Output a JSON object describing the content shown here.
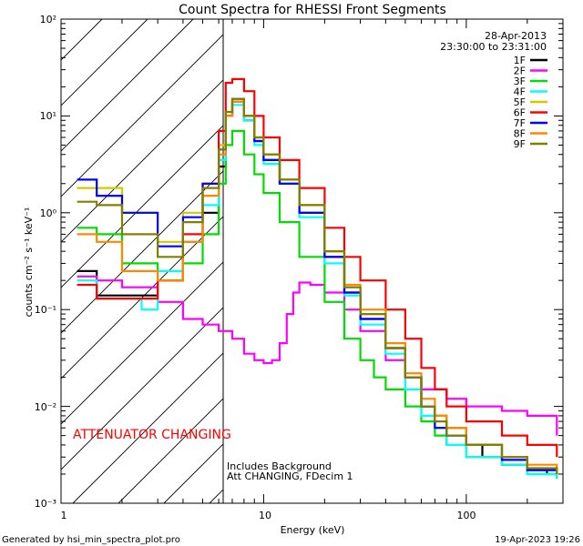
{
  "footer": {
    "left": "Generated by hsi_min_spectra_plot.pro",
    "right": "19-Apr-2023 19:26"
  },
  "chart_data": {
    "type": "line",
    "title": "Count Spectra for RHESSI Front Segments",
    "xlabel": "Energy (keV)",
    "ylabel": "counts cm⁻² s⁻¹ keV⁻¹",
    "xscale": "log",
    "yscale": "log",
    "xlim": [
      1,
      300
    ],
    "ylim": [
      0.001,
      100
    ],
    "x_tick_labels": [
      "1",
      "10",
      "100"
    ],
    "y_tick_labels": [
      "10⁻³",
      "10⁻²",
      "10⁻¹",
      "10⁰",
      "10¹",
      "10²"
    ],
    "date": "28-Apr-2013",
    "time_range": "23:30:00 to 23:31:00",
    "attenuator_text": "ATTENUATOR CHANGING",
    "attenuator_region_max_keV": 6,
    "notes": [
      "Includes Background",
      "Att CHANGING, FDecim 1"
    ],
    "legend_position": "top-right",
    "series": [
      {
        "name": "1F",
        "color": "#000000",
        "x": [
          1.2,
          1.5,
          2,
          3,
          4,
          5,
          6,
          6.5,
          7,
          8,
          9,
          10,
          12,
          15,
          20,
          25,
          30,
          40,
          50,
          60,
          70,
          80,
          100,
          120,
          150,
          200,
          250,
          280
        ],
        "y": [
          0.25,
          0.14,
          0.14,
          0.2,
          0.5,
          1,
          3,
          10,
          14,
          9,
          5.5,
          3.5,
          2,
          1,
          0.35,
          0.15,
          0.08,
          0.04,
          0.02,
          0.01,
          0.008,
          0.006,
          0.004,
          0.003,
          0.0025,
          0.0022,
          0.002,
          0.0018
        ]
      },
      {
        "name": "2F",
        "color": "#ff00ff",
        "x": [
          1.2,
          1.5,
          2,
          3,
          4,
          5,
          6,
          7,
          8,
          9,
          10,
          11,
          12,
          13,
          14,
          15,
          17,
          20,
          25,
          30,
          40,
          50,
          60,
          80,
          100,
          150,
          200,
          280
        ],
        "y": [
          0.22,
          0.2,
          0.17,
          0.12,
          0.08,
          0.07,
          0.06,
          0.05,
          0.035,
          0.03,
          0.028,
          0.03,
          0.045,
          0.09,
          0.15,
          0.19,
          0.18,
          0.15,
          0.1,
          0.06,
          0.03,
          0.02,
          0.015,
          0.012,
          0.01,
          0.009,
          0.008,
          0.005
        ]
      },
      {
        "name": "3F",
        "color": "#00dd00",
        "x": [
          1.2,
          1.5,
          2,
          3,
          4,
          5,
          6,
          6.5,
          7,
          8,
          9,
          10,
          12,
          15,
          20,
          25,
          30,
          35,
          40,
          50,
          60,
          70,
          80,
          100,
          150,
          200,
          280
        ],
        "y": [
          0.7,
          0.6,
          0.3,
          0.2,
          0.3,
          0.6,
          2,
          5,
          7,
          4,
          2.5,
          1.6,
          0.8,
          0.35,
          0.12,
          0.05,
          0.03,
          0.02,
          0.015,
          0.01,
          0.007,
          0.005,
          0.004,
          0.003,
          0.0025,
          0.002,
          0.0018
        ]
      },
      {
        "name": "4F",
        "color": "#00ffff",
        "x": [
          1.2,
          1.5,
          2,
          2.5,
          3,
          4,
          5,
          6,
          6.5,
          7,
          8,
          9,
          10,
          12,
          15,
          20,
          25,
          30,
          40,
          50,
          60,
          70,
          80,
          100,
          150,
          200,
          280
        ],
        "y": [
          0.2,
          0.13,
          0.13,
          0.1,
          0.25,
          0.5,
          1.2,
          3.5,
          10,
          13,
          9,
          5,
          3.2,
          2,
          0.9,
          0.3,
          0.14,
          0.07,
          0.035,
          0.015,
          0.008,
          0.006,
          0.004,
          0.003,
          0.0025,
          0.002,
          0.0018
        ]
      },
      {
        "name": "5F",
        "color": "#cccc00",
        "x": [
          1.2,
          1.5,
          2,
          3,
          4,
          5,
          6,
          6.5,
          7,
          8,
          9,
          10,
          12,
          15,
          20,
          25,
          30,
          40,
          50,
          60,
          70,
          80,
          100,
          150,
          200,
          280
        ],
        "y": [
          1.8,
          1.8,
          1,
          0.5,
          1,
          2,
          5,
          11,
          14,
          10,
          6,
          4,
          2.2,
          1.2,
          0.4,
          0.17,
          0.09,
          0.04,
          0.02,
          0.01,
          0.008,
          0.006,
          0.004,
          0.003,
          0.0022,
          0.002
        ]
      },
      {
        "name": "6F",
        "color": "#ff0000",
        "x": [
          1.2,
          1.5,
          2,
          3,
          4,
          5,
          6,
          6.5,
          7,
          8,
          9,
          10,
          12,
          15,
          20,
          25,
          30,
          40,
          50,
          60,
          70,
          80,
          100,
          150,
          200,
          280
        ],
        "y": [
          0.18,
          0.13,
          0.13,
          0.2,
          0.6,
          2,
          7,
          22,
          24,
          18,
          10,
          6,
          3.5,
          1.8,
          0.7,
          0.35,
          0.2,
          0.1,
          0.05,
          0.025,
          0.015,
          0.01,
          0.007,
          0.005,
          0.004,
          0.003
        ]
      },
      {
        "name": "7F",
        "color": "#0000ff",
        "x": [
          1.2,
          1.5,
          2,
          3,
          4,
          5,
          6,
          6.5,
          7,
          8,
          9,
          10,
          12,
          15,
          20,
          25,
          30,
          40,
          50,
          60,
          70,
          80,
          100,
          150,
          200,
          280
        ],
        "y": [
          2.2,
          1.5,
          1,
          0.45,
          0.9,
          2,
          4.5,
          10,
          15,
          10,
          5.5,
          3.5,
          2,
          1,
          0.35,
          0.15,
          0.08,
          0.04,
          0.02,
          0.01,
          0.006,
          0.005,
          0.004,
          0.0028,
          0.0022,
          0.002
        ]
      },
      {
        "name": "8F",
        "color": "#ff8800",
        "x": [
          1.2,
          1.5,
          2,
          3,
          4,
          5,
          6,
          6.5,
          7,
          8,
          9,
          10,
          12,
          15,
          20,
          25,
          30,
          40,
          50,
          60,
          70,
          80,
          100,
          150,
          200,
          280
        ],
        "y": [
          0.6,
          0.5,
          0.25,
          0.2,
          0.5,
          1.5,
          4,
          10,
          14,
          10,
          6,
          4,
          2.2,
          1.2,
          0.4,
          0.18,
          0.1,
          0.045,
          0.022,
          0.012,
          0.008,
          0.006,
          0.004,
          0.003,
          0.0025,
          0.002
        ]
      },
      {
        "name": "9F",
        "color": "#808000",
        "x": [
          1.2,
          1.5,
          2,
          3,
          4,
          5,
          6,
          6.5,
          7,
          8,
          9,
          10,
          12,
          15,
          20,
          25,
          30,
          40,
          50,
          60,
          70,
          80,
          100,
          150,
          200,
          280
        ],
        "y": [
          1.3,
          1.2,
          0.6,
          0.35,
          0.8,
          1.8,
          4.5,
          11,
          15,
          10,
          6,
          4,
          2.2,
          1.2,
          0.4,
          0.17,
          0.09,
          0.04,
          0.02,
          0.01,
          0.007,
          0.005,
          0.004,
          0.003,
          0.0023,
          0.002
        ]
      }
    ]
  }
}
